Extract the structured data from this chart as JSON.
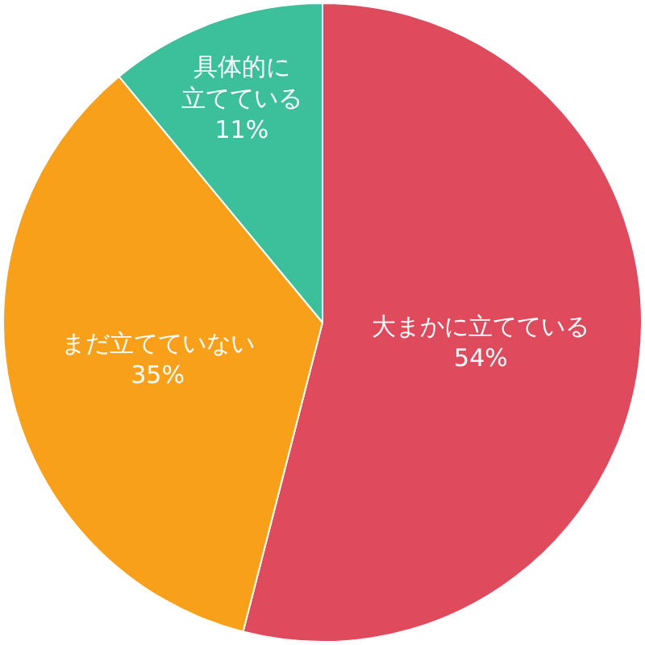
{
  "chart_data": {
    "type": "pie",
    "categories": [
      "大まかに立てている",
      "まだ立てていない",
      "具体的に立てている"
    ],
    "values": [
      54,
      35,
      11
    ],
    "value_labels": [
      "54%",
      "35%",
      "11%"
    ],
    "colors": [
      "#e04a5d",
      "#f9a01b",
      "#3cbf9b"
    ],
    "legend": false
  }
}
